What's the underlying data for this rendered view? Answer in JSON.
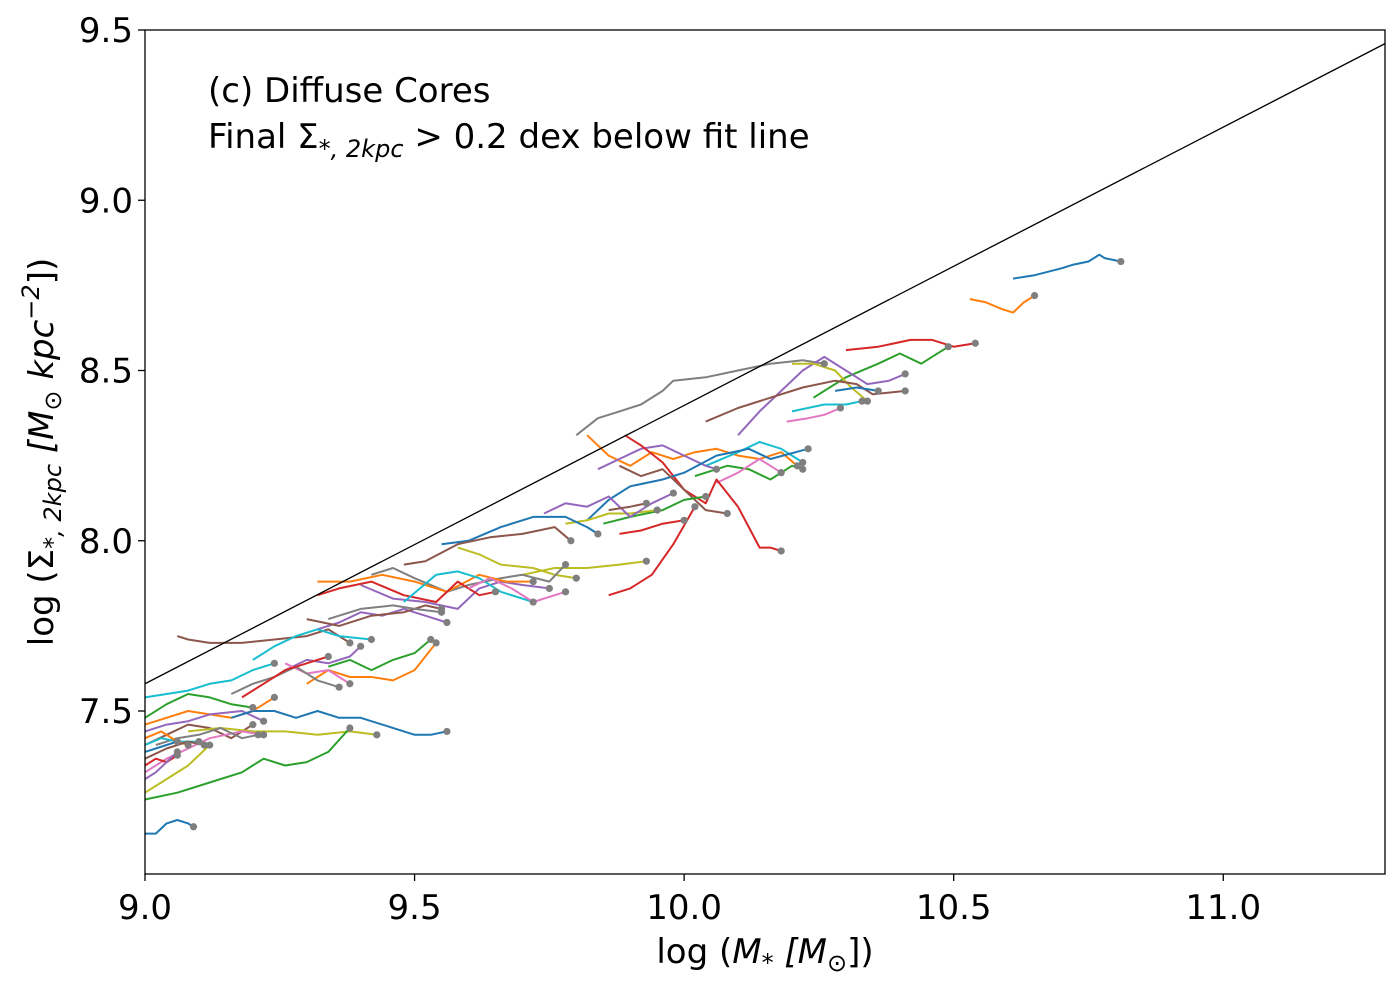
{
  "chart_data": {
    "type": "line",
    "annotation_line1": "(c) Diffuse Cores",
    "annotation_line2_prefix": "Final Σ",
    "annotation_line2_sub": "*, 2kpc",
    "annotation_line2_suffix": " > 0.2 dex below fit line",
    "xlabel_prefix": "log (",
    "xlabel_m": "M",
    "xlabel_sub": "*",
    "xlabel_unit": " [M",
    "xlabel_unit_sub": "⊙",
    "xlabel_suffix": "])",
    "ylabel_prefix": "log (Σ",
    "ylabel_sub": "*, 2kpc",
    "ylabel_unit": " [M",
    "ylabel_unit_sub": "⊙",
    "ylabel_kpc": " kpc",
    "ylabel_sup": "−2",
    "ylabel_suffix": "])",
    "xlim": [
      9.0,
      11.3
    ],
    "ylim": [
      7.0,
      9.5
    ],
    "xticks": [
      9.0,
      9.5,
      10.0,
      10.5,
      11.0
    ],
    "xtick_labels": [
      "9.0",
      "9.5",
      "10.0",
      "10.5",
      "11.0"
    ],
    "yticks": [
      7.5,
      8.0,
      8.5,
      9.0,
      9.5
    ],
    "ytick_labels": [
      "7.5",
      "8.0",
      "8.5",
      "9.0",
      "9.5"
    ],
    "fit_line": {
      "x": [
        9.0,
        11.3
      ],
      "y": [
        7.58,
        9.46
      ]
    },
    "endpoint_color": "#7f7f7f",
    "series": [
      {
        "color": "#1f77b4",
        "x": [
          10.61,
          10.65,
          10.7,
          10.72,
          10.75,
          10.77,
          10.78,
          10.81
        ],
        "y": [
          8.77,
          8.78,
          8.8,
          8.81,
          8.82,
          8.84,
          8.83,
          8.82
        ]
      },
      {
        "color": "#ff7f0e",
        "x": [
          10.53,
          10.56,
          10.59,
          10.61,
          10.63,
          10.65
        ],
        "y": [
          8.71,
          8.7,
          8.68,
          8.67,
          8.7,
          8.72
        ]
      },
      {
        "color": "#d62728",
        "x": [
          10.3,
          10.36,
          10.42,
          10.46,
          10.5,
          10.54
        ],
        "y": [
          8.56,
          8.57,
          8.59,
          8.59,
          8.57,
          8.58
        ]
      },
      {
        "color": "#2ca02c",
        "x": [
          10.24,
          10.3,
          10.36,
          10.4,
          10.44,
          10.49
        ],
        "y": [
          8.42,
          8.48,
          8.52,
          8.55,
          8.52,
          8.57
        ]
      },
      {
        "color": "#7f7f7f",
        "x": [
          9.8,
          9.84,
          9.88,
          9.92,
          9.96,
          9.98,
          10.04,
          10.1,
          10.16,
          10.22,
          10.26
        ],
        "y": [
          8.31,
          8.36,
          8.38,
          8.4,
          8.44,
          8.47,
          8.48,
          8.5,
          8.52,
          8.53,
          8.52
        ]
      },
      {
        "color": "#9467bd",
        "x": [
          10.1,
          10.14,
          10.18,
          10.22,
          10.26,
          10.3,
          10.34,
          10.38,
          10.41
        ],
        "y": [
          8.31,
          8.38,
          8.44,
          8.5,
          8.54,
          8.5,
          8.46,
          8.47,
          8.49
        ]
      },
      {
        "color": "#bcbd22",
        "x": [
          10.2,
          10.24,
          10.28,
          10.31,
          10.34
        ],
        "y": [
          8.52,
          8.52,
          8.5,
          8.45,
          8.41
        ]
      },
      {
        "color": "#8c564b",
        "x": [
          10.04,
          10.1,
          10.16,
          10.22,
          10.28,
          10.32,
          10.35,
          10.41
        ],
        "y": [
          8.35,
          8.39,
          8.42,
          8.45,
          8.47,
          8.46,
          8.43,
          8.44
        ]
      },
      {
        "color": "#17becf",
        "x": [
          10.2,
          10.26,
          10.3,
          10.33
        ],
        "y": [
          8.38,
          8.4,
          8.4,
          8.41
        ]
      },
      {
        "color": "#e377c2",
        "x": [
          10.19,
          10.23,
          10.26,
          10.29
        ],
        "y": [
          8.35,
          8.36,
          8.37,
          8.39
        ]
      },
      {
        "color": "#1f77b4",
        "x": [
          10.28,
          10.32,
          10.36
        ],
        "y": [
          8.44,
          8.45,
          8.44
        ]
      },
      {
        "color": "#ff7f0e",
        "x": [
          9.82,
          9.86,
          9.9,
          9.94,
          9.98,
          10.02,
          10.06,
          10.1,
          10.14,
          10.18,
          10.21
        ],
        "y": [
          8.31,
          8.25,
          8.22,
          8.26,
          8.24,
          8.26,
          8.27,
          8.25,
          8.24,
          8.26,
          8.22
        ]
      },
      {
        "color": "#17becf",
        "x": [
          10.04,
          10.1,
          10.14,
          10.18,
          10.2,
          10.22
        ],
        "y": [
          8.22,
          8.26,
          8.29,
          8.27,
          8.25,
          8.23
        ]
      },
      {
        "color": "#2ca02c",
        "x": [
          10.02,
          10.08,
          10.12,
          10.16,
          10.2,
          10.22
        ],
        "y": [
          8.19,
          8.22,
          8.21,
          8.18,
          8.22,
          8.21
        ]
      },
      {
        "color": "#e377c2",
        "x": [
          10.06,
          10.1,
          10.14,
          10.16,
          10.18
        ],
        "y": [
          8.17,
          8.2,
          8.24,
          8.22,
          8.2
        ]
      },
      {
        "color": "#9467bd",
        "x": [
          9.84,
          9.88,
          9.92,
          9.96,
          10.0,
          10.04,
          10.06
        ],
        "y": [
          8.21,
          8.24,
          8.27,
          8.28,
          8.25,
          8.22,
          8.21
        ]
      },
      {
        "color": "#d62728",
        "x": [
          9.89,
          9.92,
          9.96,
          10.0,
          10.04,
          10.06,
          10.1,
          10.12,
          10.14,
          10.16,
          10.18
        ],
        "y": [
          8.31,
          8.28,
          8.23,
          8.15,
          8.11,
          8.18,
          8.1,
          8.04,
          7.98,
          7.98,
          7.97
        ]
      },
      {
        "color": "#1f77b4",
        "x": [
          9.82,
          9.86,
          9.9,
          9.96,
          10.0,
          10.06,
          10.12,
          10.16,
          10.23
        ],
        "y": [
          8.06,
          8.12,
          8.16,
          8.18,
          8.2,
          8.25,
          8.27,
          8.24,
          8.27
        ]
      },
      {
        "color": "#8c564b",
        "x": [
          9.88,
          9.92,
          9.96,
          10.0,
          10.04,
          10.08
        ],
        "y": [
          8.22,
          8.19,
          8.21,
          8.15,
          8.09,
          8.08
        ]
      },
      {
        "color": "#2ca02c",
        "x": [
          9.85,
          9.9,
          9.96,
          10.0,
          10.04
        ],
        "y": [
          8.05,
          8.07,
          8.09,
          8.12,
          8.13
        ]
      },
      {
        "color": "#d62728",
        "x": [
          9.86,
          9.9,
          9.94,
          9.98,
          10.02
        ],
        "y": [
          7.84,
          7.86,
          7.9,
          7.99,
          8.1
        ]
      },
      {
        "color": "#bcbd22",
        "x": [
          9.78,
          9.82,
          9.86,
          9.9,
          9.95
        ],
        "y": [
          8.05,
          8.06,
          8.08,
          8.08,
          8.09
        ]
      },
      {
        "color": "#9467bd",
        "x": [
          9.74,
          9.78,
          9.82,
          9.86,
          9.9,
          9.94,
          9.98
        ],
        "y": [
          8.08,
          8.11,
          8.1,
          8.13,
          8.07,
          8.11,
          8.14
        ]
      },
      {
        "color": "#8c564b",
        "x": [
          9.86,
          9.9,
          9.93
        ],
        "y": [
          8.09,
          8.1,
          8.11
        ]
      },
      {
        "color": "#1f77b4",
        "x": [
          9.55,
          9.6,
          9.66,
          9.72,
          9.78,
          9.82,
          9.84
        ],
        "y": [
          7.99,
          8.0,
          8.04,
          8.07,
          8.07,
          8.04,
          8.02
        ]
      },
      {
        "color": "#d62728",
        "x": [
          9.88,
          9.92,
          9.96,
          10.0
        ],
        "y": [
          8.02,
          8.03,
          8.05,
          8.06
        ]
      },
      {
        "color": "#bcbd22",
        "x": [
          9.7,
          9.76,
          9.82,
          9.88,
          9.93
        ],
        "y": [
          7.9,
          7.92,
          7.92,
          7.93,
          7.94
        ]
      },
      {
        "color": "#8c564b",
        "x": [
          9.48,
          9.52,
          9.58,
          9.64,
          9.7,
          9.76,
          9.79
        ],
        "y": [
          7.93,
          7.94,
          7.99,
          8.01,
          8.02,
          8.04,
          8.0
        ]
      },
      {
        "color": "#bcbd22",
        "x": [
          9.58,
          9.62,
          9.66,
          9.72,
          9.76,
          9.8
        ],
        "y": [
          7.98,
          7.96,
          7.93,
          7.92,
          7.9,
          7.89
        ]
      },
      {
        "color": "#7f7f7f",
        "x": [
          9.42,
          9.46,
          9.5,
          9.56,
          9.6,
          9.66,
          9.7,
          9.75,
          9.78
        ],
        "y": [
          7.9,
          7.92,
          7.89,
          7.85,
          7.87,
          7.89,
          7.9,
          7.88,
          7.93
        ]
      },
      {
        "color": "#9467bd",
        "x": [
          9.4,
          9.46,
          9.52,
          9.58,
          9.62,
          9.66,
          9.7,
          9.75
        ],
        "y": [
          7.87,
          7.83,
          7.82,
          7.8,
          7.86,
          7.88,
          7.87,
          7.86
        ]
      },
      {
        "color": "#ff7f0e",
        "x": [
          9.32,
          9.38,
          9.44,
          9.5,
          9.56,
          9.62,
          9.67,
          9.72
        ],
        "y": [
          7.88,
          7.88,
          7.9,
          7.88,
          7.85,
          7.9,
          7.88,
          7.88
        ]
      },
      {
        "color": "#d62728",
        "x": [
          9.32,
          9.36,
          9.42,
          9.48,
          9.54,
          9.58,
          9.62,
          9.65
        ],
        "y": [
          7.84,
          7.86,
          7.88,
          7.84,
          7.82,
          7.88,
          7.84,
          7.85
        ]
      },
      {
        "color": "#17becf",
        "x": [
          9.48,
          9.54,
          9.58,
          9.62,
          9.66,
          9.72
        ],
        "y": [
          7.82,
          7.9,
          7.91,
          7.89,
          7.85,
          7.82
        ]
      },
      {
        "color": "#e377c2",
        "x": [
          9.6,
          9.64,
          9.68,
          9.72,
          9.76,
          9.78
        ],
        "y": [
          7.86,
          7.89,
          7.86,
          7.82,
          7.84,
          7.85
        ]
      },
      {
        "color": "#9467bd",
        "x": [
          9.32,
          9.36,
          9.4,
          9.44,
          9.48,
          9.52,
          9.56
        ],
        "y": [
          7.74,
          7.76,
          7.79,
          7.78,
          7.8,
          7.78,
          7.76
        ]
      },
      {
        "color": "#8c564b",
        "x": [
          9.3,
          9.36,
          9.42,
          9.48,
          9.52,
          9.55
        ],
        "y": [
          7.77,
          7.75,
          7.78,
          7.79,
          7.81,
          7.8
        ]
      },
      {
        "color": "#7f7f7f",
        "x": [
          9.34,
          9.4,
          9.46,
          9.5,
          9.55
        ],
        "y": [
          7.77,
          7.8,
          7.81,
          7.8,
          7.79
        ]
      },
      {
        "color": "#8c564b",
        "x": [
          9.06,
          9.08,
          9.12,
          9.18,
          9.24,
          9.3,
          9.34,
          9.38
        ],
        "y": [
          7.72,
          7.71,
          7.7,
          7.7,
          7.71,
          7.72,
          7.74,
          7.7
        ]
      },
      {
        "color": "#17becf",
        "x": [
          9.2,
          9.24,
          9.28,
          9.32,
          9.36,
          9.42
        ],
        "y": [
          7.65,
          7.69,
          7.72,
          7.74,
          7.72,
          7.71
        ]
      },
      {
        "color": "#2ca02c",
        "x": [
          9.34,
          9.38,
          9.42,
          9.46,
          9.5,
          9.53
        ],
        "y": [
          7.63,
          7.65,
          7.62,
          7.65,
          7.67,
          7.71
        ]
      },
      {
        "color": "#ff7f0e",
        "x": [
          9.3,
          9.34,
          9.38,
          9.42,
          9.46,
          9.5,
          9.54
        ],
        "y": [
          7.58,
          7.62,
          7.6,
          7.6,
          7.59,
          7.62,
          7.7
        ]
      },
      {
        "color": "#9467bd",
        "x": [
          9.26,
          9.3,
          9.34,
          9.38,
          9.4
        ],
        "y": [
          7.62,
          7.65,
          7.64,
          7.66,
          7.69
        ]
      },
      {
        "color": "#e377c2",
        "x": [
          9.26,
          9.3,
          9.34,
          9.38
        ],
        "y": [
          7.64,
          7.61,
          7.62,
          7.58
        ]
      },
      {
        "color": "#7f7f7f",
        "x": [
          9.16,
          9.2,
          9.24,
          9.28,
          9.32,
          9.36
        ],
        "y": [
          7.55,
          7.58,
          7.6,
          7.63,
          7.59,
          7.57
        ]
      },
      {
        "color": "#d62728",
        "x": [
          9.18,
          9.22,
          9.26,
          9.3,
          9.34
        ],
        "y": [
          7.54,
          7.58,
          7.62,
          7.64,
          7.66
        ]
      },
      {
        "color": "#17becf",
        "x": [
          9.0,
          9.04,
          9.08,
          9.12,
          9.16,
          9.2,
          9.24
        ],
        "y": [
          7.54,
          7.55,
          7.56,
          7.58,
          7.59,
          7.62,
          7.64
        ]
      },
      {
        "color": "#2ca02c",
        "x": [
          9.0,
          9.04,
          9.08,
          9.12,
          9.16,
          9.2
        ],
        "y": [
          7.48,
          7.52,
          7.55,
          7.54,
          7.52,
          7.51
        ]
      },
      {
        "color": "#ff7f0e",
        "x": [
          9.0,
          9.04,
          9.08,
          9.12,
          9.16,
          9.2,
          9.24
        ],
        "y": [
          7.46,
          7.48,
          7.5,
          7.49,
          7.48,
          7.5,
          7.54
        ]
      },
      {
        "color": "#9467bd",
        "x": [
          9.0,
          9.04,
          9.08,
          9.12,
          9.18,
          9.22
        ],
        "y": [
          7.44,
          7.46,
          7.47,
          7.49,
          7.5,
          7.47
        ]
      },
      {
        "color": "#8c564b",
        "x": [
          9.0,
          9.04,
          9.08,
          9.12,
          9.16,
          9.2
        ],
        "y": [
          7.4,
          7.43,
          7.46,
          7.45,
          7.42,
          7.46
        ]
      },
      {
        "color": "#1f77b4",
        "x": [
          9.16,
          9.2,
          9.24,
          9.28,
          9.32,
          9.36,
          9.4,
          9.44,
          9.5,
          9.53,
          9.56
        ],
        "y": [
          7.48,
          7.5,
          7.5,
          7.48,
          7.5,
          7.48,
          7.48,
          7.46,
          7.43,
          7.43,
          7.44
        ]
      },
      {
        "color": "#bcbd22",
        "x": [
          9.08,
          9.14,
          9.2,
          9.26,
          9.32,
          9.38,
          9.43
        ],
        "y": [
          7.44,
          7.45,
          7.44,
          7.44,
          7.43,
          7.44,
          7.43
        ]
      },
      {
        "color": "#2ca02c",
        "x": [
          9.0,
          9.06,
          9.12,
          9.18,
          9.22,
          9.26,
          9.3,
          9.34,
          9.38
        ],
        "y": [
          7.24,
          7.26,
          7.29,
          7.32,
          7.36,
          7.34,
          7.35,
          7.38,
          7.45
        ]
      },
      {
        "color": "#e377c2",
        "x": [
          9.0,
          9.04,
          9.08,
          9.12,
          9.18,
          9.22
        ],
        "y": [
          7.32,
          7.36,
          7.39,
          7.42,
          7.44,
          7.43
        ]
      },
      {
        "color": "#7f7f7f",
        "x": [
          9.02,
          9.06,
          9.1,
          9.14,
          9.18,
          9.21
        ],
        "y": [
          7.4,
          7.42,
          7.43,
          7.45,
          7.42,
          7.43
        ]
      },
      {
        "color": "#bcbd22",
        "x": [
          9.0,
          9.04,
          9.08,
          9.12
        ],
        "y": [
          7.26,
          7.3,
          7.34,
          7.4
        ]
      },
      {
        "color": "#17becf",
        "x": [
          9.0,
          9.03,
          9.06,
          9.1
        ],
        "y": [
          7.4,
          7.42,
          7.41,
          7.41
        ]
      },
      {
        "color": "#d62728",
        "x": [
          9.0,
          9.02,
          9.04,
          9.06
        ],
        "y": [
          7.34,
          7.36,
          7.35,
          7.37
        ]
      },
      {
        "color": "#9467bd",
        "x": [
          9.0,
          9.02,
          9.04,
          9.06
        ],
        "y": [
          7.3,
          7.32,
          7.35,
          7.38
        ]
      },
      {
        "color": "#1f77b4",
        "x": [
          9.0,
          9.02,
          9.04,
          9.06
        ],
        "y": [
          7.38,
          7.39,
          7.4,
          7.41
        ]
      },
      {
        "color": "#ff7f0e",
        "x": [
          9.0,
          9.03,
          9.06,
          9.08
        ],
        "y": [
          7.42,
          7.44,
          7.41,
          7.4
        ]
      },
      {
        "color": "#8c564b",
        "x": [
          9.0,
          9.04,
          9.08,
          9.11
        ],
        "y": [
          7.36,
          7.39,
          7.41,
          7.4
        ]
      },
      {
        "color": "#1f77b4",
        "x": [
          9.0,
          9.02,
          9.04,
          9.06,
          9.08,
          9.09
        ],
        "y": [
          7.14,
          7.14,
          7.17,
          7.18,
          7.17,
          7.16
        ]
      }
    ]
  }
}
